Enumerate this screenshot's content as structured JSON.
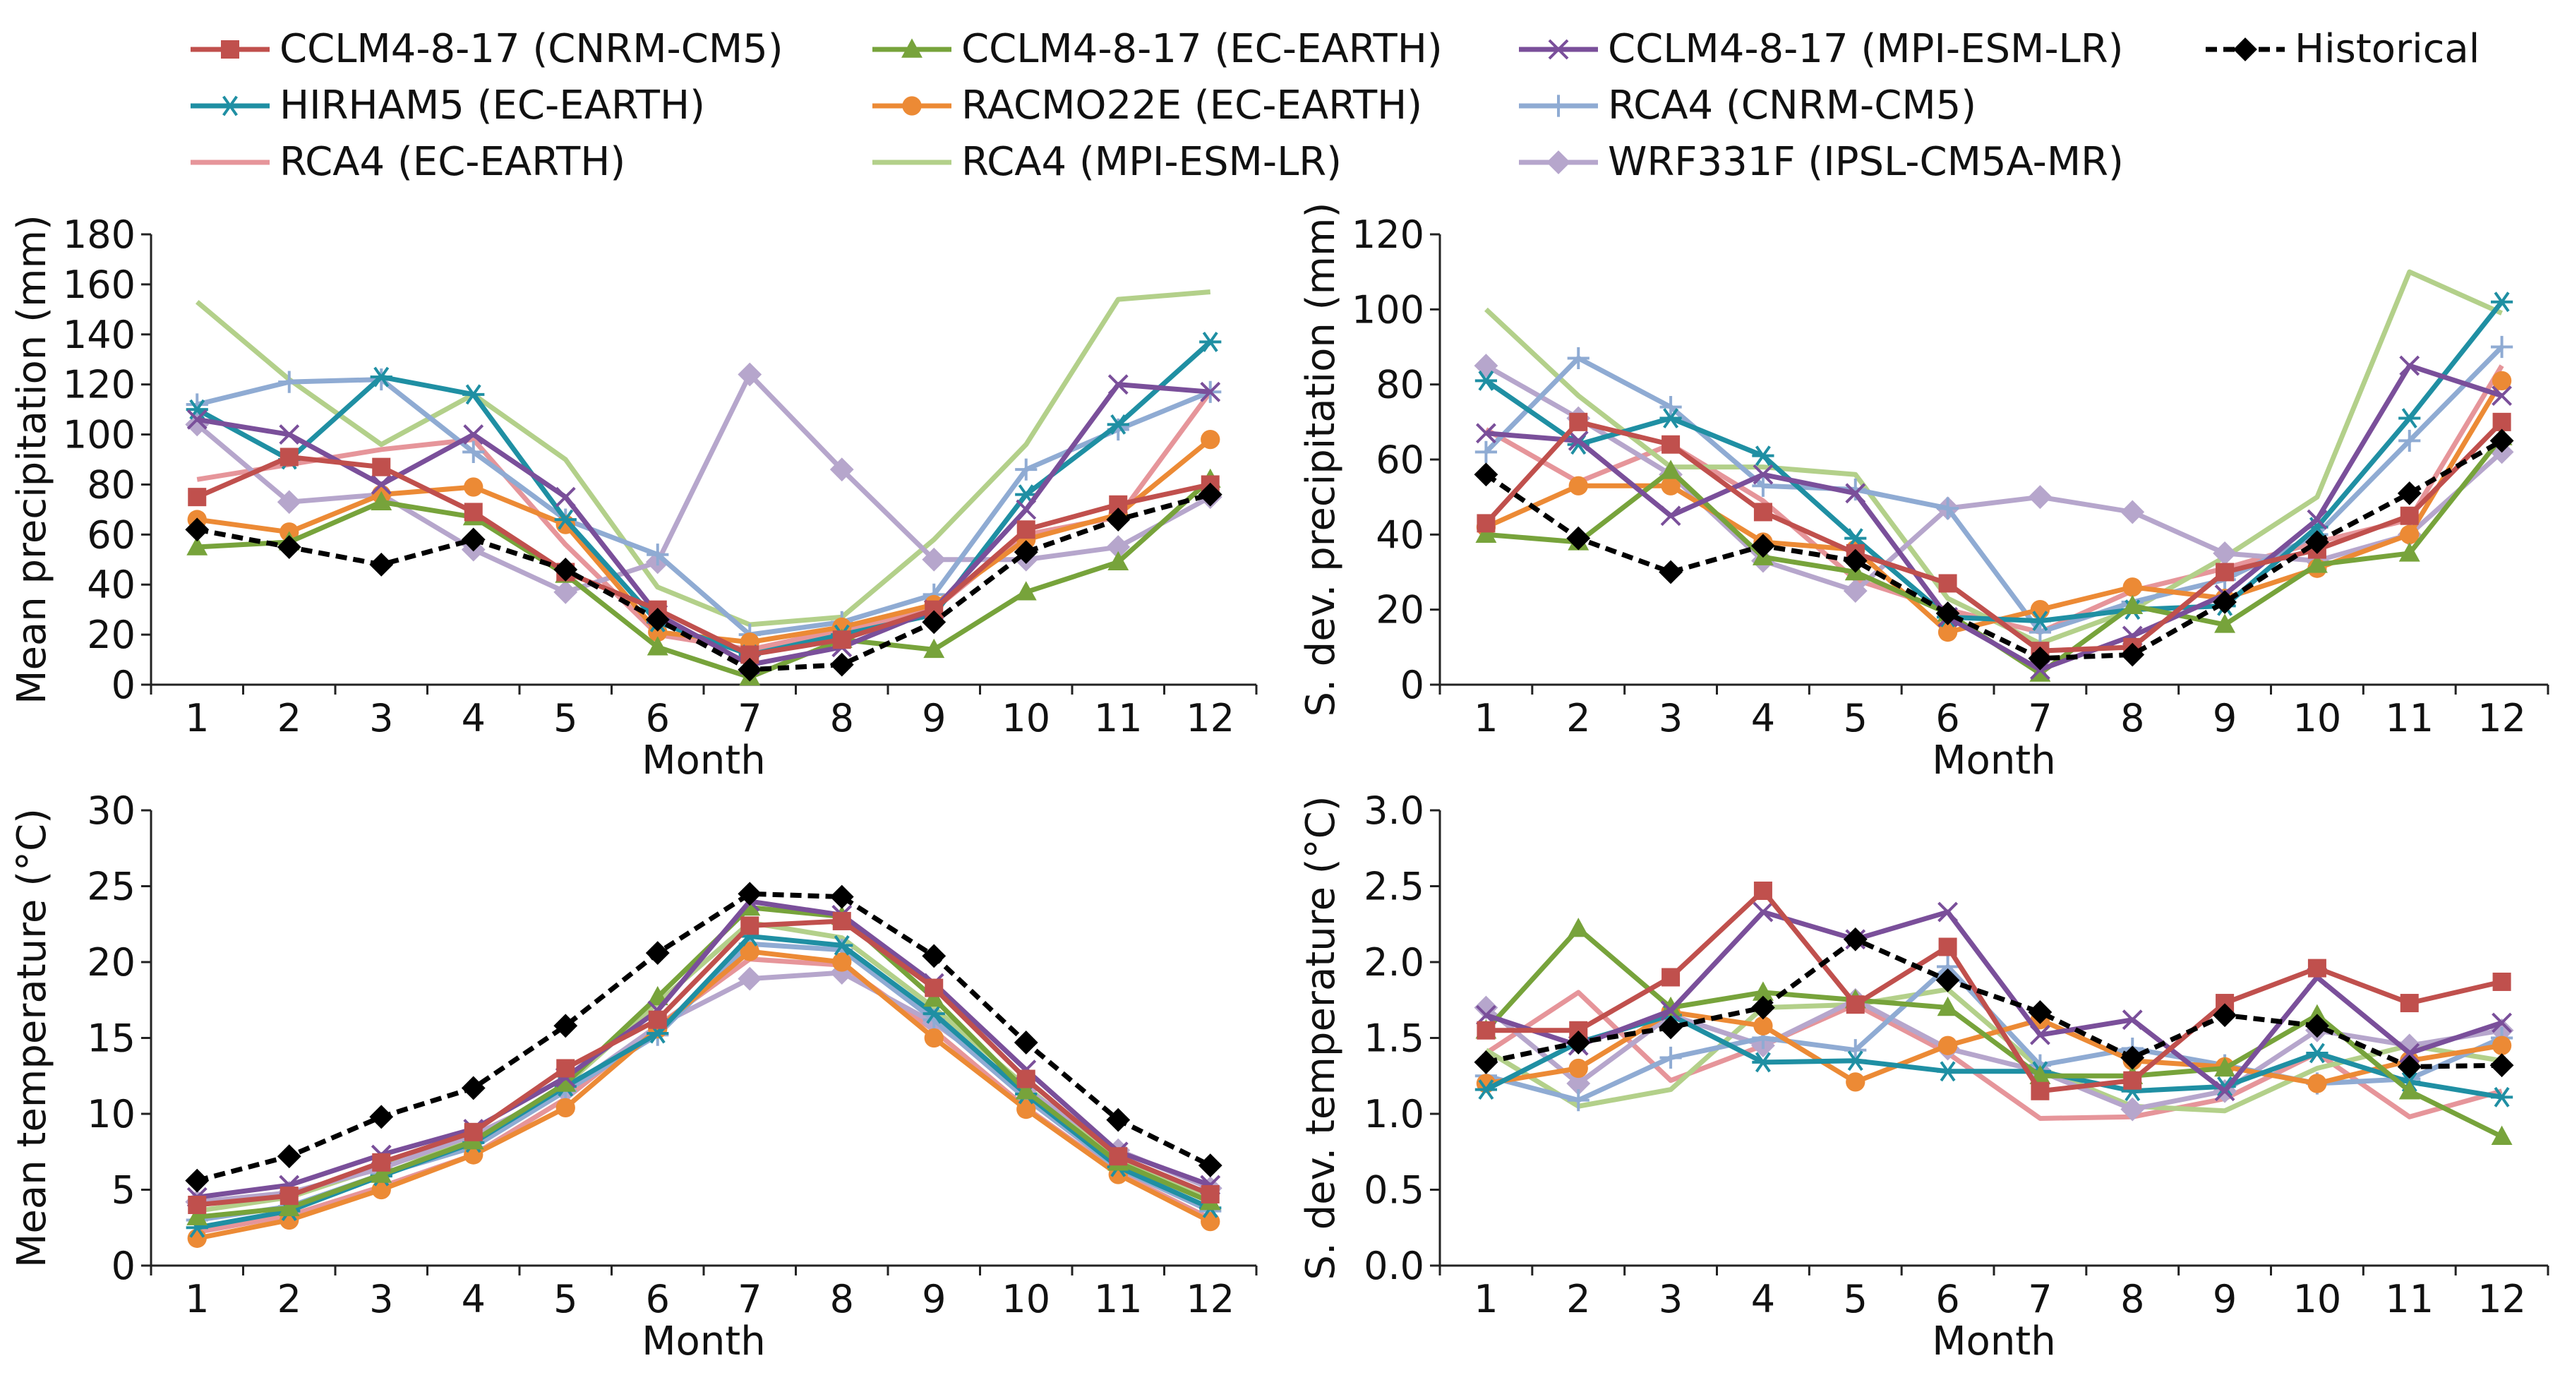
{
  "figure": {
    "legend_entries": [
      {
        "name": "CCLM4-8-17 (CNRM-CM5)",
        "color": "#c0504d",
        "marker": "square",
        "dash": false
      },
      {
        "name": "CCLM4-8-17 (EC-EARTH)",
        "color": "#77a33b",
        "marker": "triangle",
        "dash": false
      },
      {
        "name": "CCLM4-8-17 (MPI-ESM-LR)",
        "color": "#7a4f9a",
        "marker": "x",
        "dash": false
      },
      {
        "name": "Historical",
        "color": "#000000",
        "marker": "diamond",
        "dash": true
      },
      {
        "name": "HIRHAM5 (EC-EARTH)",
        "color": "#1f8fa3",
        "marker": "asterisk",
        "dash": false
      },
      {
        "name": "RACMO22E (EC-EARTH)",
        "color": "#ec8a35",
        "marker": "circle",
        "dash": false
      },
      {
        "name": "RCA4 (CNRM-CM5)",
        "color": "#8fabd3",
        "marker": "plus",
        "dash": false
      },
      {
        "name": "RCA4 (EC-EARTH)",
        "color": "#e6959a",
        "marker": "none",
        "dash": false
      },
      {
        "name": "RCA4 (MPI-ESM-LR)",
        "color": "#b3d08a",
        "marker": "none",
        "dash": false
      },
      {
        "name": "WRF331F (IPSL-CM5A-MR)",
        "color": "#b6a6cc",
        "marker": "diamond",
        "dash": false
      }
    ]
  },
  "chart_data": [
    {
      "id": "mean_precip",
      "type": "line",
      "xlabel": "Month",
      "ylabel": "Mean precipitation (mm)",
      "categories": [
        "1",
        "2",
        "3",
        "4",
        "5",
        "6",
        "7",
        "8",
        "9",
        "10",
        "11",
        "12"
      ],
      "ylim": [
        0,
        180
      ],
      "yticks": [
        "0",
        "20",
        "40",
        "60",
        "80",
        "100",
        "120",
        "140",
        "160",
        "180"
      ],
      "series": [
        {
          "name": "CCLM4-8-17 (CNRM-CM5)",
          "values": [
            75,
            91,
            87,
            69,
            45,
            30,
            12,
            18,
            30,
            62,
            72,
            80
          ]
        },
        {
          "name": "CCLM4-8-17 (EC-EARTH)",
          "values": [
            55,
            57,
            73,
            67,
            44,
            15,
            3,
            18,
            14,
            37,
            49,
            82
          ]
        },
        {
          "name": "CCLM4-8-17 (MPI-ESM-LR)",
          "values": [
            106,
            100,
            80,
            100,
            75,
            28,
            8,
            15,
            30,
            70,
            120,
            117
          ]
        },
        {
          "name": "HIRHAM5 (EC-EARTH)",
          "values": [
            110,
            90,
            123,
            116,
            66,
            25,
            12,
            20,
            28,
            76,
            104,
            137
          ]
        },
        {
          "name": "RACMO22E (EC-EARTH)",
          "values": [
            66,
            61,
            76,
            79,
            64,
            21,
            17,
            23,
            32,
            58,
            68,
            98
          ]
        },
        {
          "name": "RCA4 (CNRM-CM5)",
          "values": [
            112,
            121,
            122,
            93,
            66,
            52,
            20,
            25,
            36,
            86,
            102,
            117
          ]
        },
        {
          "name": "RCA4 (EC-EARTH)",
          "values": [
            82,
            88,
            94,
            98,
            56,
            20,
            14,
            22,
            30,
            60,
            67,
            117
          ]
        },
        {
          "name": "RCA4 (MPI-ESM-LR)",
          "values": [
            153,
            122,
            96,
            116,
            90,
            39,
            24,
            27,
            58,
            96,
            154,
            157
          ]
        },
        {
          "name": "WRF331F (IPSL-CM5A-MR)",
          "values": [
            104,
            73,
            76,
            54,
            37,
            49,
            124,
            86,
            50,
            50,
            55,
            75
          ]
        },
        {
          "name": "Historical",
          "values": [
            62,
            55,
            48,
            58,
            46,
            26,
            6,
            8,
            25,
            53,
            66,
            76
          ]
        }
      ]
    },
    {
      "id": "sd_precip",
      "type": "line",
      "xlabel": "Month",
      "ylabel": "S. dev. precipitation (mm)",
      "categories": [
        "1",
        "2",
        "3",
        "4",
        "5",
        "6",
        "7",
        "8",
        "9",
        "10",
        "11",
        "12"
      ],
      "ylim": [
        0,
        120
      ],
      "yticks": [
        "0",
        "20",
        "40",
        "60",
        "80",
        "100",
        "120"
      ],
      "series": [
        {
          "name": "CCLM4-8-17 (CNRM-CM5)",
          "values": [
            43,
            70,
            64,
            46,
            35,
            27,
            9,
            10,
            30,
            36,
            45,
            70
          ]
        },
        {
          "name": "CCLM4-8-17 (EC-EARTH)",
          "values": [
            40,
            38,
            57,
            34,
            30,
            19,
            3,
            21,
            16,
            32,
            35,
            66
          ]
        },
        {
          "name": "CCLM4-8-17 (MPI-ESM-LR)",
          "values": [
            67,
            65,
            45,
            56,
            51,
            18,
            4,
            13,
            24,
            44,
            85,
            77
          ]
        },
        {
          "name": "HIRHAM5 (EC-EARTH)",
          "values": [
            81,
            64,
            71,
            61,
            39,
            18,
            17,
            20,
            21,
            42,
            71,
            102
          ]
        },
        {
          "name": "RACMO22E (EC-EARTH)",
          "values": [
            42,
            53,
            53,
            38,
            36,
            14,
            20,
            26,
            23,
            31,
            40,
            81
          ]
        },
        {
          "name": "RCA4 (CNRM-CM5)",
          "values": [
            62,
            87,
            74,
            53,
            52,
            47,
            14,
            22,
            28,
            40,
            65,
            90
          ]
        },
        {
          "name": "RCA4 (EC-EARTH)",
          "values": [
            68,
            54,
            64,
            49,
            28,
            20,
            14,
            25,
            31,
            38,
            44,
            85
          ]
        },
        {
          "name": "RCA4 (MPI-ESM-LR)",
          "values": [
            100,
            77,
            58,
            58,
            56,
            23,
            11,
            20,
            34,
            50,
            110,
            99
          ]
        },
        {
          "name": "WRF331F (IPSL-CM5A-MR)",
          "values": [
            85,
            71,
            56,
            33,
            25,
            47,
            50,
            46,
            35,
            33,
            40,
            62
          ]
        },
        {
          "name": "Historical",
          "values": [
            56,
            39,
            30,
            37,
            33,
            19,
            7,
            8,
            22,
            38,
            51,
            65
          ]
        }
      ]
    },
    {
      "id": "mean_temp",
      "type": "line",
      "xlabel": "Month",
      "ylabel": "Mean temperature (°C)",
      "categories": [
        "1",
        "2",
        "3",
        "4",
        "5",
        "6",
        "7",
        "8",
        "9",
        "10",
        "11",
        "12"
      ],
      "ylim": [
        0,
        30
      ],
      "yticks": [
        "0",
        "5",
        "10",
        "15",
        "20",
        "25",
        "30"
      ],
      "series": [
        {
          "name": "CCLM4-8-17 (CNRM-CM5)",
          "values": [
            4.0,
            4.6,
            6.8,
            8.8,
            13.0,
            16.2,
            22.4,
            22.7,
            18.3,
            12.3,
            7.2,
            4.7
          ]
        },
        {
          "name": "CCLM4-8-17 (EC-EARTH)",
          "values": [
            3.2,
            3.8,
            6.0,
            8.2,
            12.0,
            17.7,
            23.6,
            23.0,
            17.6,
            11.5,
            6.8,
            4.2
          ]
        },
        {
          "name": "CCLM4-8-17 (MPI-ESM-LR)",
          "values": [
            4.5,
            5.3,
            7.3,
            9.0,
            12.4,
            16.8,
            24.0,
            23.1,
            18.6,
            12.9,
            7.5,
            5.3
          ]
        },
        {
          "name": "HIRHAM5 (EC-EARTH)",
          "values": [
            2.5,
            3.6,
            5.9,
            8.1,
            11.8,
            15.3,
            21.7,
            21.1,
            16.6,
            11.3,
            6.5,
            3.8
          ]
        },
        {
          "name": "RACMO22E (EC-EARTH)",
          "values": [
            1.8,
            3.0,
            5.0,
            7.3,
            10.4,
            15.6,
            20.7,
            20.0,
            15.0,
            10.3,
            6.0,
            2.9
          ]
        },
        {
          "name": "RCA4 (CNRM-CM5)",
          "values": [
            3.0,
            3.9,
            6.0,
            7.8,
            11.5,
            15.2,
            21.2,
            20.8,
            16.2,
            11.0,
            6.4,
            3.6
          ]
        },
        {
          "name": "RCA4 (EC-EARTH)",
          "values": [
            2.2,
            3.3,
            5.2,
            7.3,
            11.0,
            15.8,
            20.2,
            19.8,
            15.5,
            10.4,
            6.1,
            3.1
          ]
        },
        {
          "name": "RCA4 (MPI-ESM-LR)",
          "values": [
            3.6,
            4.5,
            6.5,
            8.3,
            11.9,
            17.3,
            22.6,
            21.6,
            17.0,
            11.8,
            6.9,
            4.4
          ]
        },
        {
          "name": "WRF331F (IPSL-CM5A-MR)",
          "values": [
            4.2,
            4.8,
            6.4,
            8.6,
            11.5,
            15.8,
            18.9,
            19.3,
            16.0,
            11.6,
            7.6,
            5.1
          ]
        },
        {
          "name": "Historical",
          "values": [
            5.6,
            7.2,
            9.8,
            11.7,
            15.8,
            20.6,
            24.5,
            24.3,
            20.4,
            14.7,
            9.6,
            6.6
          ]
        }
      ]
    },
    {
      "id": "sd_temp",
      "type": "line",
      "xlabel": "Month",
      "ylabel": "S. dev. temperature (°C)",
      "categories": [
        "1",
        "2",
        "3",
        "4",
        "5",
        "6",
        "7",
        "8",
        "9",
        "10",
        "11",
        "12"
      ],
      "ylim": [
        0,
        3
      ],
      "yticks": [
        "0.0",
        "0.5",
        "1.0",
        "1.5",
        "2.0",
        "2.5",
        "3.0"
      ],
      "series": [
        {
          "name": "CCLM4-8-17 (CNRM-CM5)",
          "values": [
            1.55,
            1.55,
            1.9,
            2.47,
            1.72,
            2.1,
            1.15,
            1.22,
            1.73,
            1.96,
            1.73,
            1.87
          ]
        },
        {
          "name": "CCLM4-8-17 (EC-EARTH)",
          "values": [
            1.55,
            2.22,
            1.7,
            1.8,
            1.75,
            1.7,
            1.25,
            1.25,
            1.3,
            1.65,
            1.15,
            0.85
          ]
        },
        {
          "name": "CCLM4-8-17 (MPI-ESM-LR)",
          "values": [
            1.65,
            1.45,
            1.68,
            2.33,
            2.15,
            2.33,
            1.52,
            1.62,
            1.15,
            1.9,
            1.4,
            1.6
          ]
        },
        {
          "name": "HIRHAM5 (EC-EARTH)",
          "values": [
            1.16,
            1.47,
            1.65,
            1.34,
            1.35,
            1.28,
            1.28,
            1.15,
            1.18,
            1.4,
            1.21,
            1.11
          ]
        },
        {
          "name": "RACMO22E (EC-EARTH)",
          "values": [
            1.2,
            1.3,
            1.67,
            1.58,
            1.21,
            1.45,
            1.62,
            1.35,
            1.31,
            1.2,
            1.35,
            1.45
          ]
        },
        {
          "name": "RCA4 (CNRM-CM5)",
          "values": [
            1.25,
            1.09,
            1.37,
            1.5,
            1.42,
            1.97,
            1.32,
            1.43,
            1.32,
            1.2,
            1.23,
            1.5
          ]
        },
        {
          "name": "RCA4 (EC-EARTH)",
          "values": [
            1.4,
            1.8,
            1.22,
            1.45,
            1.72,
            1.4,
            0.97,
            0.98,
            1.1,
            1.4,
            0.98,
            1.15
          ]
        },
        {
          "name": "RCA4 (MPI-ESM-LR)",
          "values": [
            1.42,
            1.05,
            1.16,
            1.7,
            1.72,
            1.82,
            1.3,
            1.05,
            1.02,
            1.3,
            1.45,
            1.35
          ]
        },
        {
          "name": "WRF331F (IPSL-CM5A-MR)",
          "values": [
            1.7,
            1.2,
            1.65,
            1.45,
            1.75,
            1.43,
            1.28,
            1.03,
            1.15,
            1.55,
            1.45,
            1.55
          ]
        },
        {
          "name": "Historical",
          "values": [
            1.34,
            1.47,
            1.57,
            1.7,
            2.15,
            1.88,
            1.67,
            1.37,
            1.65,
            1.58,
            1.31,
            1.32
          ]
        }
      ]
    }
  ]
}
